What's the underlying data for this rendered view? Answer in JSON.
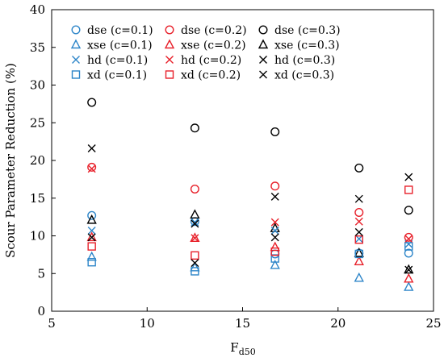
{
  "chart_data": {
    "type": "scatter",
    "xlabel": "F",
    "xlabel_sub": "d50",
    "ylabel": "Scour Parameter Reduction (%)",
    "xlim": [
      5,
      25
    ],
    "ylim": [
      0,
      40
    ],
    "xticks": [
      5,
      10,
      15,
      20,
      25
    ],
    "yticks": [
      0,
      5,
      10,
      15,
      20,
      25,
      30,
      35,
      40
    ],
    "grid": false,
    "legend_position": "top",
    "x": [
      7.1,
      12.5,
      16.7,
      21.1,
      23.7
    ],
    "series": [
      {
        "name": "dse (c=0.1)",
        "marker": "circle",
        "color": "#2E86C9",
        "values": [
          12.7,
          11.9,
          7.6,
          7.7,
          7.7
        ]
      },
      {
        "name": "dse (c=0.2)",
        "marker": "circle",
        "color": "#E8202A",
        "values": [
          19.1,
          16.2,
          16.6,
          13.1,
          9.8
        ]
      },
      {
        "name": "dse (c=0.3)",
        "marker": "circle",
        "color": "#000000",
        "values": [
          27.7,
          24.3,
          23.8,
          19.0,
          13.4
        ]
      },
      {
        "name": "xse (c=0.1)",
        "marker": "triangle",
        "color": "#2E86C9",
        "values": [
          7.2,
          5.8,
          6.1,
          4.4,
          3.2
        ]
      },
      {
        "name": "xse (c=0.2)",
        "marker": "triangle",
        "color": "#E8202A",
        "values": [
          9.8,
          9.7,
          8.5,
          6.6,
          4.3
        ]
      },
      {
        "name": "xse (c=0.3)",
        "marker": "triangle",
        "color": "#000000",
        "values": [
          12.1,
          12.8,
          11.0,
          7.7,
          5.5
        ]
      },
      {
        "name": "hd (c=0.1)",
        "marker": "x",
        "color": "#2E86C9",
        "values": [
          10.7,
          11.8,
          10.7,
          9.6,
          8.9
        ]
      },
      {
        "name": "hd (c=0.2)",
        "marker": "x",
        "color": "#E8202A",
        "values": [
          18.9,
          9.7,
          11.8,
          11.9,
          9.6
        ]
      },
      {
        "name": "hd (c=0.3)",
        "marker": "x",
        "color": "#000000",
        "values": [
          21.6,
          11.6,
          15.2,
          14.9,
          17.8
        ]
      },
      {
        "name": "xd (c=0.1)",
        "marker": "square",
        "color": "#2E86C9",
        "values": [
          6.5,
          5.3,
          7.0,
          7.6,
          8.6
        ]
      },
      {
        "name": "xd (c=0.2)",
        "marker": "square",
        "color": "#E8202A",
        "values": [
          8.6,
          7.4,
          7.9,
          9.5,
          16.1
        ]
      },
      {
        "name": "xd (c=0.3)",
        "marker": "x",
        "color": "#000000",
        "values": [
          9.8,
          6.4,
          9.8,
          10.5,
          5.5
        ]
      }
    ]
  }
}
